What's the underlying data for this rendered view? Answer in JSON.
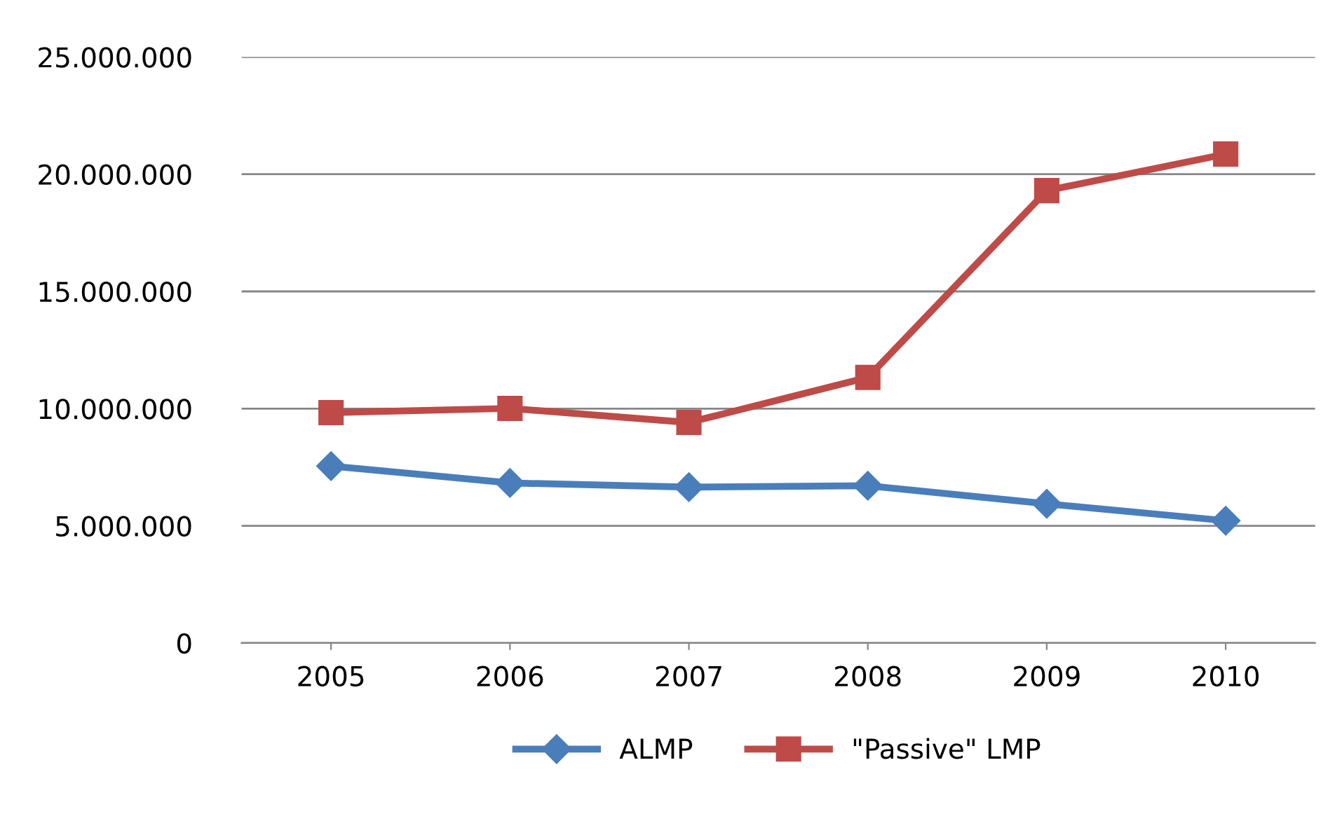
{
  "chart_data": {
    "type": "line",
    "categories": [
      "2005",
      "2006",
      "2007",
      "2008",
      "2009",
      "2010"
    ],
    "series": [
      {
        "name": "ALMP",
        "color": "#4a7ebb",
        "marker": "diamond",
        "values": [
          7550000,
          6830000,
          6650000,
          6710000,
          5940000,
          5220000
        ]
      },
      {
        "name": "\"Passive\" LMP",
        "color": "#be4b48",
        "marker": "square",
        "values": [
          9830000,
          10010000,
          9410000,
          11330000,
          19300000,
          20860000
        ]
      }
    ],
    "ylim": [
      0,
      25000000
    ],
    "yticks": [
      0,
      {
        "value": 5000000,
        "label": "5.000.000"
      },
      {
        "value": 10000000,
        "label": "10.000.000"
      },
      {
        "value": 15000000,
        "label": "15.000.000"
      },
      {
        "value": 20000000,
        "label": "20.000.000"
      },
      {
        "value": 25000000,
        "label": "25.000.000"
      }
    ],
    "grid": "y",
    "legend": "bottom",
    "line_style": "solid"
  }
}
